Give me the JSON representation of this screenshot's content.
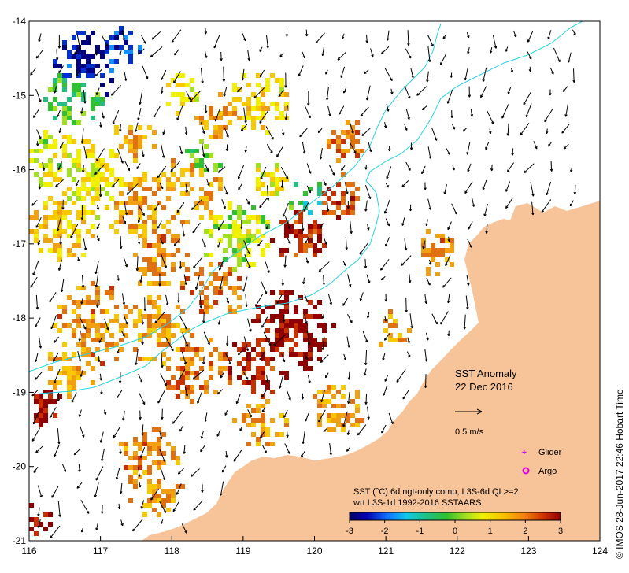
{
  "map": {
    "title": "SST Anomaly",
    "date": "22 Dec 2016",
    "lon_ticks": [
      "116",
      "117",
      "118",
      "119",
      "120",
      "121",
      "122",
      "123",
      "124"
    ],
    "lat_ticks": [
      "-14",
      "-15",
      "-16",
      "-17",
      "-18",
      "-19",
      "-20",
      "-21"
    ],
    "lon_range": [
      116,
      124
    ],
    "lat_range": [
      -14,
      -21
    ],
    "scale_label": "0.5 m/s",
    "legend_glider": "Glider",
    "legend_argo": "Argo",
    "caption_line1": "SST (°C) 6d ngt-only comp, L3S-6d QL>=2",
    "caption_line2": "wrt L3S-1d 1992-2016 SSTAARS",
    "colorbar_ticks": [
      "-3",
      "-2",
      "-1",
      "0",
      "1",
      "2",
      "3"
    ],
    "colorbar_range": [
      -3,
      3
    ],
    "credit": "© IMOS 28-Jun-2017 22:46 Hobart Time",
    "colors": {
      "land": "#f7c49a",
      "isobath": "#22d4e0",
      "frame": "#000000",
      "glider": "#e000e0",
      "argo": "#e000e0"
    }
  }
}
